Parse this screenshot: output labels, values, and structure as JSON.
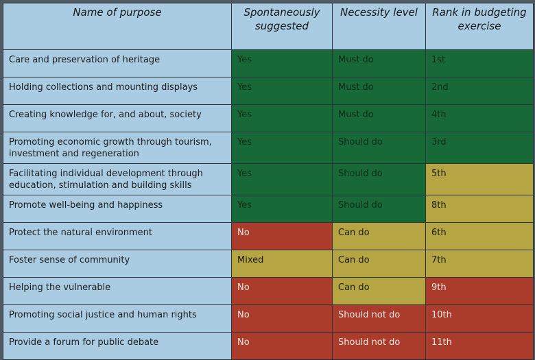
{
  "headers": [
    "Name of purpose",
    "Spontaneously suggested",
    "Necessity level",
    "Rank in budgeting exercise"
  ],
  "colors": {
    "green": "#176a38",
    "red": "#ab3b2b",
    "yellow": "#b6a543",
    "header": "#a9cce3"
  },
  "rows": [
    {
      "purpose": "Care and preservation of heritage",
      "suggested": "Yes",
      "necessity": "Must do",
      "rank": "1st",
      "suggested_color": "green",
      "necessity_color": "green",
      "rank_color": "green"
    },
    {
      "purpose": "Holding collections and mounting displays",
      "suggested": "Yes",
      "necessity": "Must do",
      "rank": "2nd",
      "suggested_color": "green",
      "necessity_color": "green",
      "rank_color": "green"
    },
    {
      "purpose": "Creating knowledge for, and about, society",
      "suggested": "Yes",
      "necessity": "Must do",
      "rank": "4th",
      "suggested_color": "green",
      "necessity_color": "green",
      "rank_color": "green"
    },
    {
      "purpose": "Promoting economic growth through tourism, investment and regeneration",
      "suggested": "Yes",
      "necessity": "Should do",
      "rank": "3rd",
      "suggested_color": "green",
      "necessity_color": "green",
      "rank_color": "green"
    },
    {
      "purpose": "Facilitating individual development through education, stimulation and building skills",
      "suggested": "Yes",
      "necessity": "Should do",
      "rank": "5th",
      "suggested_color": "green",
      "necessity_color": "green",
      "rank_color": "yellow"
    },
    {
      "purpose": "Promote well-being and happiness",
      "suggested": "Yes",
      "necessity": "Should do",
      "rank": "8th",
      "suggested_color": "green",
      "necessity_color": "green",
      "rank_color": "yellow"
    },
    {
      "purpose": "Protect the natural environment",
      "suggested": "No",
      "necessity": "Can do",
      "rank": "6th",
      "suggested_color": "red",
      "necessity_color": "yellow",
      "rank_color": "yellow"
    },
    {
      "purpose": "Foster sense of community",
      "suggested": "Mixed",
      "necessity": "Can do",
      "rank": "7th",
      "suggested_color": "yellow",
      "necessity_color": "yellow",
      "rank_color": "yellow"
    },
    {
      "purpose": "Helping the vulnerable",
      "suggested": "No",
      "necessity": "Can do",
      "rank": "9th",
      "suggested_color": "red",
      "necessity_color": "yellow",
      "rank_color": "red"
    },
    {
      "purpose": "Promoting social justice and human rights",
      "suggested": "No",
      "necessity": "Should not do",
      "rank": "10th",
      "suggested_color": "red",
      "necessity_color": "red",
      "rank_color": "red"
    },
    {
      "purpose": "Provide a forum for public debate",
      "suggested": "No",
      "necessity": "Should not do",
      "rank": "11th",
      "suggested_color": "red",
      "necessity_color": "red",
      "rank_color": "red"
    }
  ]
}
